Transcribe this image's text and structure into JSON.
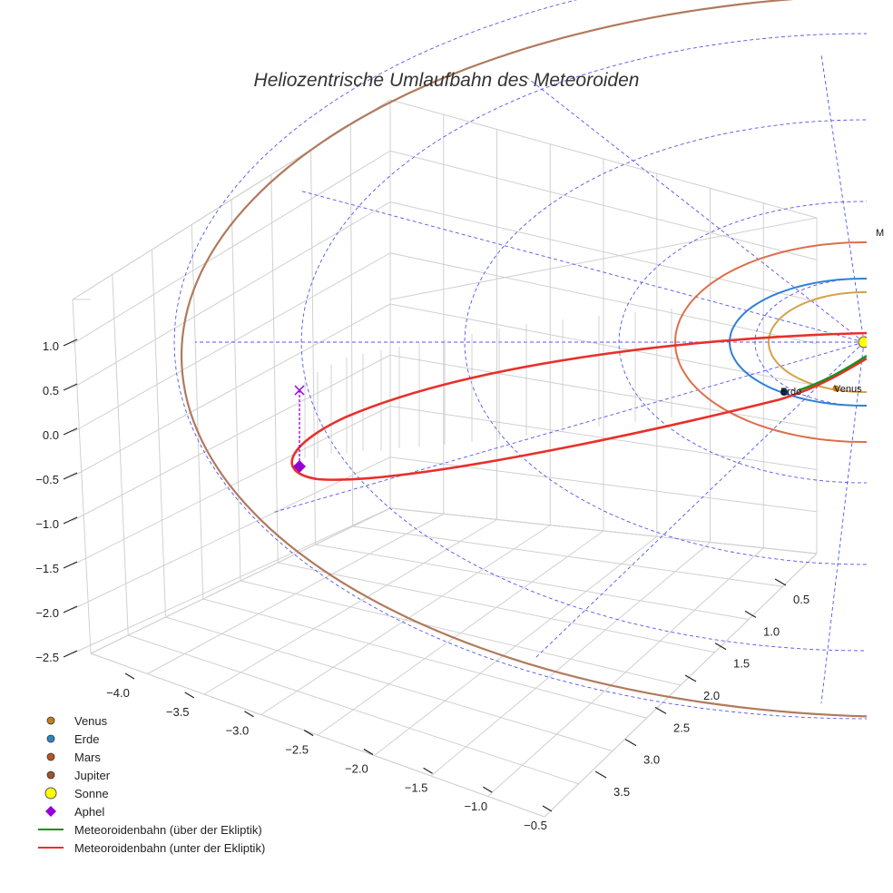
{
  "chart_data": {
    "type": "line",
    "title": "Heliozentrische Umlaufbahn des Meteoroiden",
    "z_ticks": [
      "1.0",
      "0.5",
      "0.0",
      "−0.5",
      "−1.0",
      "−1.5",
      "−2.0",
      "−2.5"
    ],
    "x_ticks": [
      "−4.0",
      "−3.5",
      "−3.0",
      "−2.5",
      "−2.0",
      "−1.5",
      "−1.0",
      "−0.5"
    ],
    "y_ticks": [
      "0.5",
      "1.0",
      "1.5",
      "2.0",
      "2.5",
      "3.0",
      "3.5"
    ],
    "xlim": [
      -4.3,
      -0.5
    ],
    "ylim": [
      0.3,
      3.7
    ],
    "zlim": [
      -2.5,
      1.3
    ],
    "planet_labels": {
      "venus": "Venus",
      "erde": "Erde",
      "mars": "M"
    },
    "legend": [
      {
        "label": "Venus",
        "marker": "circle",
        "color": "#c67c1a"
      },
      {
        "label": "Erde",
        "marker": "circle",
        "color": "#2e86c1"
      },
      {
        "label": "Mars",
        "marker": "circle",
        "color": "#c0501f"
      },
      {
        "label": "Jupiter",
        "marker": "circle",
        "color": "#a0522d"
      },
      {
        "label": "Sonne",
        "marker": "circle-large",
        "color": "#ffff00"
      },
      {
        "label": "Aphel",
        "marker": "diamond",
        "color": "#9400d3"
      },
      {
        "label": "Meteoroidenbahn (über der Ekliptik)",
        "marker": "line",
        "color": "#1a8f1a"
      },
      {
        "label": "Meteoroidenbahn (unter der Ekliptik)",
        "marker": "line",
        "color": "#e8302a"
      }
    ],
    "orbit_colors": {
      "venus": "#d4a24c",
      "erde": "#2f80d6",
      "mars": "#de6e4b",
      "jupiter": "#b07a5c",
      "grid_lines": "#5555ee",
      "meteor_below": "#e8302a",
      "meteor_above": "#1a8f1a"
    },
    "legend_placement": "bottom-left",
    "grid": true
  }
}
